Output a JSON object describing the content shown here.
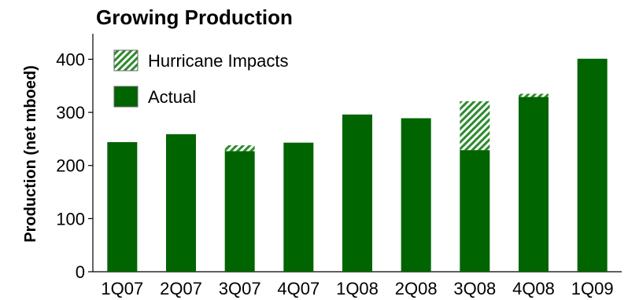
{
  "chart_data": {
    "type": "bar",
    "title": "Growing Production",
    "ylabel": "Production (net mboed)",
    "xlabel": "",
    "categories": [
      "1Q07",
      "2Q07",
      "3Q07",
      "4Q07",
      "1Q08",
      "2Q08",
      "3Q08",
      "4Q08",
      "1Q09"
    ],
    "ylim": [
      0,
      450
    ],
    "yticks": [
      0,
      100,
      200,
      300,
      400
    ],
    "stacked": true,
    "grid": false,
    "legend_position": "top-left",
    "series": [
      {
        "name": "Actual",
        "values": [
          244,
          259,
          227,
          243,
          296,
          289,
          229,
          329,
          401
        ],
        "color": "#006400",
        "pattern": "solid"
      },
      {
        "name": "Hurricane Impacts",
        "values": [
          0,
          0,
          11,
          0,
          0,
          0,
          92,
          6,
          0
        ],
        "color": "#2e8b2e",
        "pattern": "hatch"
      }
    ],
    "legend_order": [
      "Hurricane Impacts",
      "Actual"
    ]
  }
}
